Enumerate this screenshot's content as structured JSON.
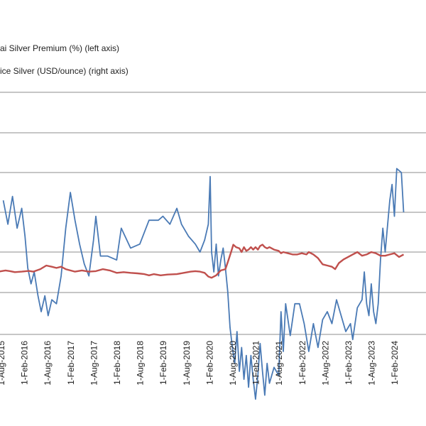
{
  "chart_data": {
    "type": "line",
    "legend": {
      "placement": "top-left",
      "entries": [
        "ai Silver Premium (%) (left axis)",
        "ice Silver (USD/ounce) (right axis)"
      ]
    },
    "grid": true,
    "x_tick_labels": [
      "1-Aug-2015",
      "1-Feb-2016",
      "1-Aug-2016",
      "1-Feb-2017",
      "1-Aug-2017",
      "1-Feb-2018",
      "1-Aug-2018",
      "1-Feb-2019",
      "1-Aug-2019",
      "1-Feb-2020",
      "1-Aug-2020",
      "1-Feb-2021",
      "1-Aug-2021",
      "1-Feb-2022",
      "1-Aug-2022",
      "1-Feb-2023",
      "1-Aug-2023",
      "1-Feb-2024"
    ],
    "series": [
      {
        "color": "#4a7ab5",
        "values": [
          [
            2015.65,
            0.65
          ],
          [
            2015.75,
            0.35
          ],
          [
            2015.85,
            0.7
          ],
          [
            2015.95,
            0.3
          ],
          [
            2016.05,
            0.55
          ],
          [
            2016.12,
            0.2
          ],
          [
            2016.18,
            -0.2
          ],
          [
            2016.25,
            -0.4
          ],
          [
            2016.32,
            -0.25
          ],
          [
            2016.4,
            -0.55
          ],
          [
            2016.47,
            -0.75
          ],
          [
            2016.55,
            -0.55
          ],
          [
            2016.62,
            -0.8
          ],
          [
            2016.7,
            -0.6
          ],
          [
            2016.8,
            -0.65
          ],
          [
            2016.9,
            -0.3
          ],
          [
            2017.0,
            0.3
          ],
          [
            2017.1,
            0.75
          ],
          [
            2017.2,
            0.4
          ],
          [
            2017.3,
            0.1
          ],
          [
            2017.4,
            -0.15
          ],
          [
            2017.5,
            -0.3
          ],
          [
            2017.6,
            0.15
          ],
          [
            2017.65,
            0.45
          ],
          [
            2017.75,
            -0.05
          ],
          [
            2017.9,
            -0.05
          ],
          [
            2018.1,
            -0.1
          ],
          [
            2018.2,
            0.3
          ],
          [
            2018.4,
            0.05
          ],
          [
            2018.6,
            0.1
          ],
          [
            2018.8,
            0.4
          ],
          [
            2019.0,
            0.4
          ],
          [
            2019.1,
            0.45
          ],
          [
            2019.25,
            0.35
          ],
          [
            2019.4,
            0.55
          ],
          [
            2019.5,
            0.35
          ],
          [
            2019.65,
            0.2
          ],
          [
            2019.8,
            0.1
          ],
          [
            2019.9,
            0.0
          ],
          [
            2020.0,
            0.15
          ],
          [
            2020.08,
            0.35
          ],
          [
            2020.12,
            0.95
          ],
          [
            2020.15,
            0.0
          ],
          [
            2020.2,
            -0.25
          ],
          [
            2020.25,
            0.1
          ],
          [
            2020.3,
            -0.3
          ],
          [
            2020.35,
            -0.1
          ],
          [
            2020.4,
            0.05
          ],
          [
            2020.45,
            -0.2
          ],
          [
            2020.5,
            -0.5
          ],
          [
            2020.55,
            -0.95
          ],
          [
            2020.6,
            -1.2
          ],
          [
            2020.65,
            -1.4
          ],
          [
            2020.7,
            -1.0
          ],
          [
            2020.75,
            -1.5
          ],
          [
            2020.8,
            -1.2
          ],
          [
            2020.85,
            -1.6
          ],
          [
            2020.9,
            -1.3
          ],
          [
            2020.95,
            -1.7
          ],
          [
            2021.0,
            -1.3
          ],
          [
            2021.05,
            -1.6
          ],
          [
            2021.1,
            -1.85
          ],
          [
            2021.15,
            -1.55
          ],
          [
            2021.2,
            -1.15
          ],
          [
            2021.25,
            -1.5
          ],
          [
            2021.3,
            -1.8
          ],
          [
            2021.35,
            -1.4
          ],
          [
            2021.4,
            -1.65
          ],
          [
            2021.5,
            -1.45
          ],
          [
            2021.6,
            -1.55
          ],
          [
            2021.65,
            -0.75
          ],
          [
            2021.7,
            -1.25
          ],
          [
            2021.75,
            -0.65
          ],
          [
            2021.85,
            -1.05
          ],
          [
            2021.95,
            -0.65
          ],
          [
            2022.05,
            -0.65
          ],
          [
            2022.15,
            -0.9
          ],
          [
            2022.25,
            -1.25
          ],
          [
            2022.35,
            -0.9
          ],
          [
            2022.45,
            -1.2
          ],
          [
            2022.55,
            -0.85
          ],
          [
            2022.65,
            -0.75
          ],
          [
            2022.75,
            -0.9
          ],
          [
            2022.85,
            -0.6
          ],
          [
            2022.95,
            -0.8
          ],
          [
            2023.05,
            -1.0
          ],
          [
            2023.15,
            -0.9
          ],
          [
            2023.2,
            -1.1
          ],
          [
            2023.3,
            -0.7
          ],
          [
            2023.4,
            -0.6
          ],
          [
            2023.45,
            -0.25
          ],
          [
            2023.5,
            -0.65
          ],
          [
            2023.55,
            -0.8
          ],
          [
            2023.6,
            -0.4
          ],
          [
            2023.65,
            -0.75
          ],
          [
            2023.7,
            -0.9
          ],
          [
            2023.75,
            -0.65
          ],
          [
            2023.8,
            -0.1
          ],
          [
            2023.85,
            0.3
          ],
          [
            2023.9,
            0.0
          ],
          [
            2024.0,
            0.65
          ],
          [
            2024.05,
            0.85
          ],
          [
            2024.1,
            0.45
          ],
          [
            2024.15,
            1.05
          ],
          [
            2024.25,
            1.0
          ],
          [
            2024.3,
            0.5
          ]
        ]
      },
      {
        "color": "#c0504d",
        "values": [
          [
            2015.55,
            17.0
          ],
          [
            2015.7,
            17.5
          ],
          [
            2015.8,
            17.2
          ],
          [
            2015.9,
            16.8
          ],
          [
            2016.05,
            17.0
          ],
          [
            2016.2,
            17.3
          ],
          [
            2016.3,
            17.0
          ],
          [
            2016.45,
            18.0
          ],
          [
            2016.58,
            19.5
          ],
          [
            2016.7,
            19.0
          ],
          [
            2016.8,
            18.5
          ],
          [
            2016.9,
            19.0
          ],
          [
            2017.0,
            18.0
          ],
          [
            2017.1,
            17.5
          ],
          [
            2017.2,
            17.0
          ],
          [
            2017.35,
            17.5
          ],
          [
            2017.5,
            17.0
          ],
          [
            2017.65,
            17.2
          ],
          [
            2017.8,
            18.0
          ],
          [
            2017.95,
            17.5
          ],
          [
            2018.1,
            16.5
          ],
          [
            2018.25,
            16.8
          ],
          [
            2018.4,
            16.5
          ],
          [
            2018.55,
            16.3
          ],
          [
            2018.7,
            16.0
          ],
          [
            2018.8,
            15.5
          ],
          [
            2018.9,
            16.0
          ],
          [
            2019.05,
            15.5
          ],
          [
            2019.2,
            15.8
          ],
          [
            2019.4,
            16.0
          ],
          [
            2019.55,
            16.5
          ],
          [
            2019.7,
            17.0
          ],
          [
            2019.8,
            17.2
          ],
          [
            2019.9,
            17.0
          ],
          [
            2020.0,
            16.5
          ],
          [
            2020.08,
            15.0
          ],
          [
            2020.15,
            14.5
          ],
          [
            2020.25,
            15.5
          ],
          [
            2020.3,
            16.5
          ],
          [
            2020.35,
            17.5
          ],
          [
            2020.45,
            18.0
          ],
          [
            2020.52,
            22.0
          ],
          [
            2020.58,
            25.5
          ],
          [
            2020.62,
            28.0
          ],
          [
            2020.68,
            27.0
          ],
          [
            2020.75,
            26.5
          ],
          [
            2020.8,
            25.0
          ],
          [
            2020.85,
            27.0
          ],
          [
            2020.9,
            25.5
          ],
          [
            2020.95,
            26.0
          ],
          [
            2021.0,
            27.0
          ],
          [
            2021.05,
            26.0
          ],
          [
            2021.1,
            27.0
          ],
          [
            2021.15,
            26.0
          ],
          [
            2021.2,
            27.5
          ],
          [
            2021.25,
            28.0
          ],
          [
            2021.3,
            27.0
          ],
          [
            2021.35,
            26.5
          ],
          [
            2021.4,
            27.0
          ],
          [
            2021.5,
            26.0
          ],
          [
            2021.6,
            25.5
          ],
          [
            2021.65,
            24.5
          ],
          [
            2021.7,
            25.0
          ],
          [
            2021.8,
            24.5
          ],
          [
            2021.9,
            24.0
          ],
          [
            2022.0,
            24.0
          ],
          [
            2022.1,
            24.5
          ],
          [
            2022.2,
            24.0
          ],
          [
            2022.25,
            25.0
          ],
          [
            2022.35,
            24.0
          ],
          [
            2022.45,
            22.5
          ],
          [
            2022.55,
            20.0
          ],
          [
            2022.65,
            19.5
          ],
          [
            2022.75,
            19.0
          ],
          [
            2022.82,
            18.0
          ],
          [
            2022.9,
            20.5
          ],
          [
            2023.0,
            22.0
          ],
          [
            2023.1,
            23.0
          ],
          [
            2023.2,
            24.0
          ],
          [
            2023.3,
            25.0
          ],
          [
            2023.4,
            23.5
          ],
          [
            2023.5,
            24.0
          ],
          [
            2023.6,
            25.0
          ],
          [
            2023.7,
            24.5
          ],
          [
            2023.8,
            23.5
          ],
          [
            2023.9,
            23.5
          ],
          [
            2024.0,
            24.0
          ],
          [
            2024.1,
            24.5
          ],
          [
            2024.2,
            23.0
          ],
          [
            2024.3,
            24.0
          ]
        ]
      }
    ]
  }
}
